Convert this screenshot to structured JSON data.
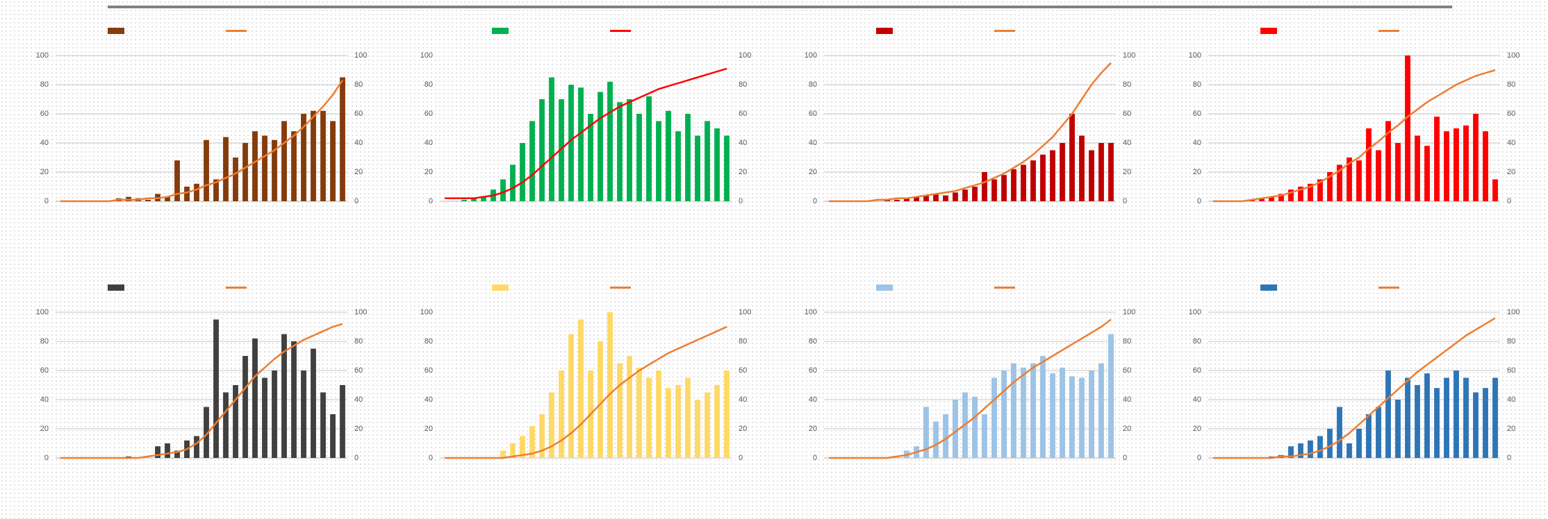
{
  "chart_data": [
    {
      "type": "bar",
      "ylim": [
        0,
        100
      ],
      "yticks": [
        0,
        20,
        40,
        60,
        80,
        100
      ],
      "y2lim": [
        0,
        100
      ],
      "y2ticks": [
        0,
        20,
        40,
        60,
        80,
        100
      ],
      "grid": true,
      "series": [
        {
          "color": "#843c0c",
          "values": [
            0,
            0,
            0,
            0,
            0,
            0,
            2,
            3,
            2,
            1,
            5,
            3,
            28,
            10,
            12,
            42,
            15,
            44,
            30,
            40,
            48,
            45,
            42,
            55,
            48,
            60,
            62,
            62,
            55,
            85
          ]
        },
        {
          "color": "#ed7d31",
          "axis": "y2",
          "values": [
            0,
            0,
            0,
            0,
            0,
            0,
            1,
            1,
            1,
            2,
            2,
            3,
            5,
            6,
            8,
            11,
            13,
            16,
            19,
            23,
            27,
            31,
            35,
            40,
            45,
            51,
            58,
            65,
            73,
            83
          ]
        }
      ]
    },
    {
      "type": "bar",
      "ylim": [
        0,
        100
      ],
      "yticks": [
        0,
        20,
        40,
        60,
        80,
        100
      ],
      "y2lim": [
        0,
        100
      ],
      "y2ticks": [
        0,
        20,
        40,
        60,
        80,
        100
      ],
      "grid": false,
      "series": [
        {
          "color": "#00b050",
          "values": [
            0,
            0,
            1,
            2,
            3,
            8,
            15,
            25,
            40,
            55,
            70,
            85,
            70,
            80,
            78,
            60,
            75,
            82,
            68,
            70,
            60,
            72,
            55,
            62,
            48,
            60,
            45,
            55,
            50,
            45
          ]
        },
        {
          "color": "#ff0000",
          "axis": "y2",
          "values": [
            2,
            2,
            2,
            2,
            3,
            4,
            6,
            9,
            13,
            18,
            24,
            30,
            36,
            42,
            47,
            52,
            57,
            61,
            65,
            68,
            71,
            74,
            77,
            79,
            81,
            83,
            85,
            87,
            89,
            91
          ]
        }
      ]
    },
    {
      "type": "bar",
      "ylim": [
        0,
        100
      ],
      "yticks": [
        0,
        20,
        40,
        60,
        80,
        100
      ],
      "y2lim": [
        0,
        100
      ],
      "y2ticks": [
        0,
        20,
        40,
        60,
        80,
        100
      ],
      "grid": true,
      "series": [
        {
          "color": "#c00000",
          "values": [
            0,
            0,
            0,
            0,
            0,
            0,
            1,
            1,
            2,
            3,
            4,
            5,
            4,
            6,
            8,
            10,
            20,
            15,
            18,
            22,
            25,
            28,
            32,
            35,
            40,
            60,
            45,
            35,
            40,
            40
          ]
        },
        {
          "color": "#ed7d31",
          "axis": "y2",
          "values": [
            0,
            0,
            0,
            0,
            0,
            1,
            1,
            2,
            2,
            3,
            4,
            5,
            6,
            7,
            9,
            11,
            13,
            16,
            19,
            23,
            27,
            32,
            38,
            44,
            52,
            60,
            70,
            80,
            88,
            95
          ]
        }
      ]
    },
    {
      "type": "bar",
      "ylim": [
        0,
        100
      ],
      "yticks": [
        0,
        20,
        40,
        60,
        80,
        100
      ],
      "y2lim": [
        0,
        100
      ],
      "y2ticks": [
        0,
        20,
        40,
        60,
        80,
        100
      ],
      "grid": true,
      "series": [
        {
          "color": "#ff0000",
          "values": [
            0,
            0,
            0,
            0,
            1,
            2,
            3,
            5,
            8,
            10,
            12,
            15,
            20,
            25,
            30,
            28,
            50,
            35,
            55,
            40,
            100,
            45,
            38,
            58,
            48,
            50,
            52,
            60,
            48,
            15
          ]
        },
        {
          "color": "#ed7d31",
          "axis": "y2",
          "values": [
            0,
            0,
            0,
            0,
            1,
            2,
            3,
            4,
            6,
            8,
            10,
            13,
            17,
            21,
            26,
            30,
            36,
            41,
            47,
            52,
            58,
            63,
            68,
            72,
            76,
            80,
            83,
            86,
            88,
            90
          ]
        }
      ]
    },
    {
      "type": "bar",
      "ylim": [
        0,
        100
      ],
      "yticks": [
        0,
        20,
        40,
        60,
        80,
        100
      ],
      "y2lim": [
        0,
        100
      ],
      "y2ticks": [
        0,
        20,
        40,
        60,
        80,
        100
      ],
      "grid": true,
      "series": [
        {
          "color": "#404040",
          "values": [
            0,
            0,
            0,
            0,
            0,
            0,
            0,
            1,
            0,
            0,
            8,
            10,
            5,
            12,
            15,
            35,
            95,
            45,
            50,
            70,
            82,
            55,
            60,
            85,
            80,
            60,
            75,
            45,
            30,
            50
          ]
        },
        {
          "color": "#ed7d31",
          "axis": "y2",
          "values": [
            0,
            0,
            0,
            0,
            0,
            0,
            0,
            0,
            0,
            1,
            2,
            3,
            4,
            6,
            10,
            16,
            24,
            32,
            40,
            48,
            56,
            62,
            68,
            73,
            77,
            81,
            84,
            87,
            90,
            92
          ]
        }
      ]
    },
    {
      "type": "bar",
      "ylim": [
        0,
        100
      ],
      "yticks": [
        0,
        20,
        40,
        60,
        80,
        100
      ],
      "y2lim": [
        0,
        100
      ],
      "y2ticks": [
        0,
        20,
        40,
        60,
        80,
        100
      ],
      "grid": false,
      "series": [
        {
          "color": "#ffd966",
          "values": [
            0,
            0,
            0,
            0,
            0,
            0,
            5,
            10,
            15,
            22,
            30,
            45,
            60,
            85,
            95,
            60,
            80,
            100,
            65,
            70,
            62,
            55,
            60,
            48,
            50,
            55,
            40,
            45,
            50,
            60
          ]
        },
        {
          "color": "#ed7d31",
          "axis": "y2",
          "values": [
            0,
            0,
            0,
            0,
            0,
            0,
            0,
            1,
            2,
            3,
            5,
            8,
            12,
            17,
            23,
            30,
            37,
            44,
            50,
            55,
            60,
            64,
            68,
            72,
            75,
            78,
            81,
            84,
            87,
            90
          ]
        }
      ]
    },
    {
      "type": "bar",
      "ylim": [
        0,
        100
      ],
      "yticks": [
        0,
        20,
        40,
        60,
        80,
        100
      ],
      "y2lim": [
        0,
        100
      ],
      "y2ticks": [
        0,
        20,
        40,
        60,
        80,
        100
      ],
      "grid": true,
      "series": [
        {
          "color": "#9dc3e6",
          "values": [
            0,
            0,
            0,
            0,
            0,
            0,
            0,
            0,
            5,
            8,
            35,
            25,
            30,
            40,
            45,
            42,
            30,
            55,
            60,
            65,
            62,
            65,
            70,
            58,
            62,
            56,
            55,
            60,
            65,
            85
          ]
        },
        {
          "color": "#ed7d31",
          "axis": "y2",
          "values": [
            0,
            0,
            0,
            0,
            0,
            0,
            0,
            1,
            2,
            4,
            6,
            9,
            13,
            18,
            23,
            28,
            34,
            40,
            46,
            52,
            57,
            62,
            66,
            70,
            74,
            78,
            82,
            86,
            90,
            95
          ]
        }
      ]
    },
    {
      "type": "bar",
      "ylim": [
        0,
        100
      ],
      "yticks": [
        0,
        20,
        40,
        60,
        80,
        100
      ],
      "y2lim": [
        0,
        100
      ],
      "y2ticks": [
        0,
        20,
        40,
        60,
        80,
        100
      ],
      "grid": true,
      "series": [
        {
          "color": "#2e75b6",
          "values": [
            0,
            0,
            0,
            0,
            0,
            0,
            1,
            2,
            8,
            10,
            12,
            15,
            20,
            35,
            10,
            20,
            30,
            35,
            60,
            40,
            55,
            50,
            58,
            48,
            55,
            60,
            55,
            45,
            48,
            55
          ]
        },
        {
          "color": "#ed7d31",
          "axis": "y2",
          "values": [
            0,
            0,
            0,
            0,
            0,
            0,
            0,
            1,
            1,
            2,
            3,
            5,
            8,
            12,
            17,
            23,
            29,
            35,
            41,
            47,
            53,
            59,
            64,
            69,
            74,
            79,
            84,
            88,
            92,
            96
          ]
        }
      ]
    }
  ]
}
